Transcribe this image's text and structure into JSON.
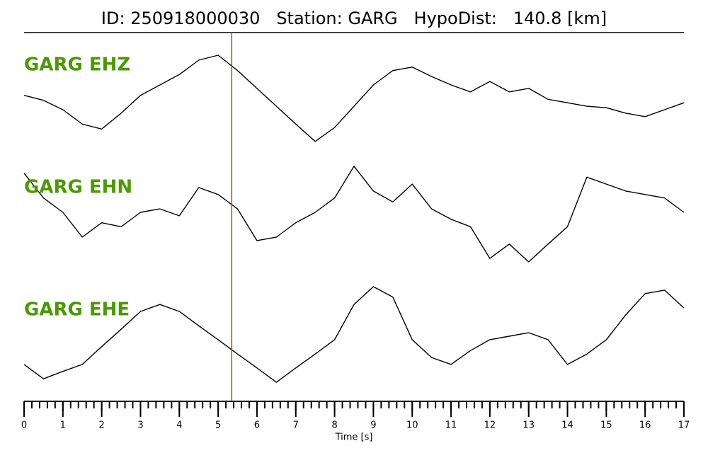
{
  "chart_data": {
    "type": "line",
    "title": "ID: 250918000030   Station: GARG   HypoDist:   140.8 [km]",
    "x_label": "Time [s]",
    "xlim": [
      0,
      17
    ],
    "xticks": [
      0,
      1,
      2,
      3,
      4,
      5,
      6,
      7,
      8,
      9,
      10,
      11,
      12,
      13,
      14,
      15,
      16,
      17
    ],
    "minor_tick_step": 0.2,
    "pick_time": 5.35,
    "pick_color": "#e03030",
    "label_color": "#4a9a00",
    "x": [
      0,
      0.5,
      1,
      1.5,
      2,
      2.5,
      3,
      3.5,
      4,
      4.5,
      5,
      5.5,
      6,
      6.5,
      7,
      7.5,
      8,
      8.5,
      9,
      9.5,
      10,
      10.5,
      11,
      11.5,
      12,
      12.5,
      13,
      13.5,
      14,
      14.5,
      15,
      15.5,
      16,
      16.5,
      17
    ],
    "series": [
      {
        "name": "GARG EHZ",
        "color": "#000000",
        "values": [
          0.19,
          0.09,
          -0.1,
          -0.39,
          -0.49,
          -0.17,
          0.19,
          0.4,
          0.61,
          0.9,
          1.0,
          0.69,
          0.33,
          -0.03,
          -0.39,
          -0.74,
          -0.46,
          -0.03,
          0.4,
          0.69,
          0.76,
          0.57,
          0.4,
          0.26,
          0.47,
          0.26,
          0.33,
          0.11,
          0.04,
          -0.03,
          -0.06,
          -0.17,
          -0.24,
          -0.1,
          0.04
        ]
      },
      {
        "name": "GARG EHN",
        "color": "#000000",
        "values": [
          0.79,
          0.29,
          0.0,
          -0.5,
          -0.21,
          -0.29,
          0.0,
          0.07,
          -0.07,
          0.5,
          0.36,
          0.07,
          -0.57,
          -0.5,
          -0.21,
          0.0,
          0.29,
          0.93,
          0.43,
          0.21,
          0.57,
          0.07,
          -0.14,
          -0.29,
          -0.93,
          -0.64,
          -1.0,
          -0.64,
          -0.29,
          0.71,
          0.57,
          0.43,
          0.36,
          0.29,
          0.0
        ]
      },
      {
        "name": "GARG EHE",
        "color": "#000000",
        "values": [
          -0.57,
          -0.86,
          -0.71,
          -0.57,
          -0.21,
          0.14,
          0.5,
          0.64,
          0.5,
          0.21,
          -0.07,
          -0.36,
          -0.64,
          -0.93,
          -0.64,
          -0.36,
          -0.07,
          0.64,
          1.0,
          0.79,
          -0.07,
          -0.43,
          -0.57,
          -0.29,
          -0.07,
          0.0,
          0.07,
          -0.07,
          -0.57,
          -0.36,
          -0.07,
          0.43,
          0.86,
          0.93,
          0.57
        ]
      }
    ]
  }
}
